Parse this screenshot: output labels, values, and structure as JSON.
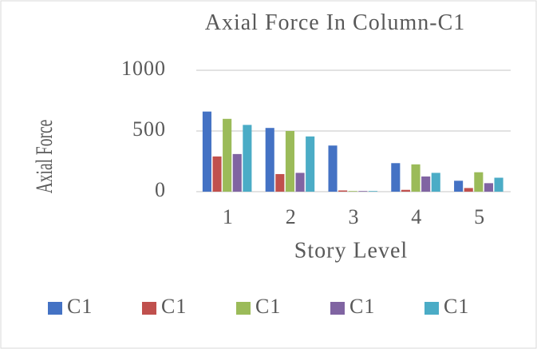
{
  "chart_data": {
    "type": "bar",
    "title": "Axial Force In Column-C1",
    "x_label": "Story Level",
    "y_label": "Axial Force",
    "categories": [
      "1",
      "2",
      "3",
      "4",
      "5"
    ],
    "series": [
      {
        "name": "C1",
        "color": "#4472c4",
        "values": [
          660,
          525,
          380,
          235,
          90
        ]
      },
      {
        "name": "C1",
        "color": "#c0504d",
        "values": [
          290,
          145,
          10,
          15,
          30
        ]
      },
      {
        "name": "C1",
        "color": "#9bbb59",
        "values": [
          600,
          500,
          5,
          225,
          160
        ]
      },
      {
        "name": "C1",
        "color": "#8064a2",
        "values": [
          310,
          155,
          5,
          125,
          70
        ]
      },
      {
        "name": "C1",
        "color": "#4bacc6",
        "values": [
          550,
          455,
          5,
          155,
          115
        ]
      }
    ],
    "ylim": [
      0,
      1000
    ],
    "yticks": [
      0,
      500,
      1000
    ],
    "grid": true,
    "legend": "bottom"
  }
}
